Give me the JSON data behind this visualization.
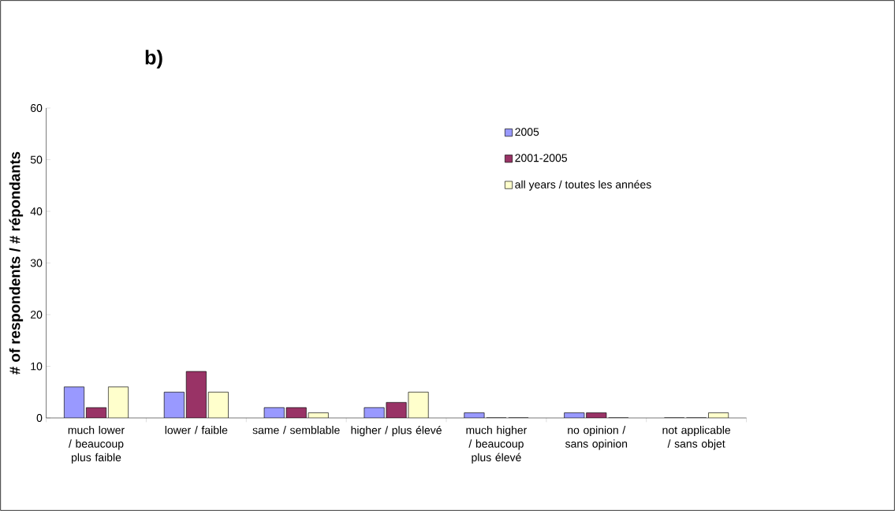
{
  "chart_data": {
    "type": "bar",
    "title": "b)",
    "ylabel": "# of respondents / # répondants",
    "categories": [
      "much lower / beaucoup plus faible",
      "lower / faible",
      "same / semblable",
      "higher / plus élevé",
      "much higher / beaucoup plus élevé",
      "no opinion / sans opinion",
      "not applicable / sans objet"
    ],
    "series": [
      {
        "name": "2005",
        "color": "#9999ff",
        "values": [
          6,
          5,
          2,
          2,
          1,
          1,
          0
        ]
      },
      {
        "name": "2001-2005",
        "color": "#993366",
        "values": [
          2,
          9,
          2,
          3,
          0,
          1,
          0
        ]
      },
      {
        "name": "all years / toutes les années",
        "color": "#ffffcc",
        "values": [
          6,
          5,
          1,
          5,
          0,
          0,
          1
        ]
      }
    ],
    "ylim": [
      0,
      60
    ],
    "yticks": [
      0,
      10,
      20,
      30,
      40,
      50,
      60
    ],
    "grid": false,
    "legend": "top right"
  }
}
